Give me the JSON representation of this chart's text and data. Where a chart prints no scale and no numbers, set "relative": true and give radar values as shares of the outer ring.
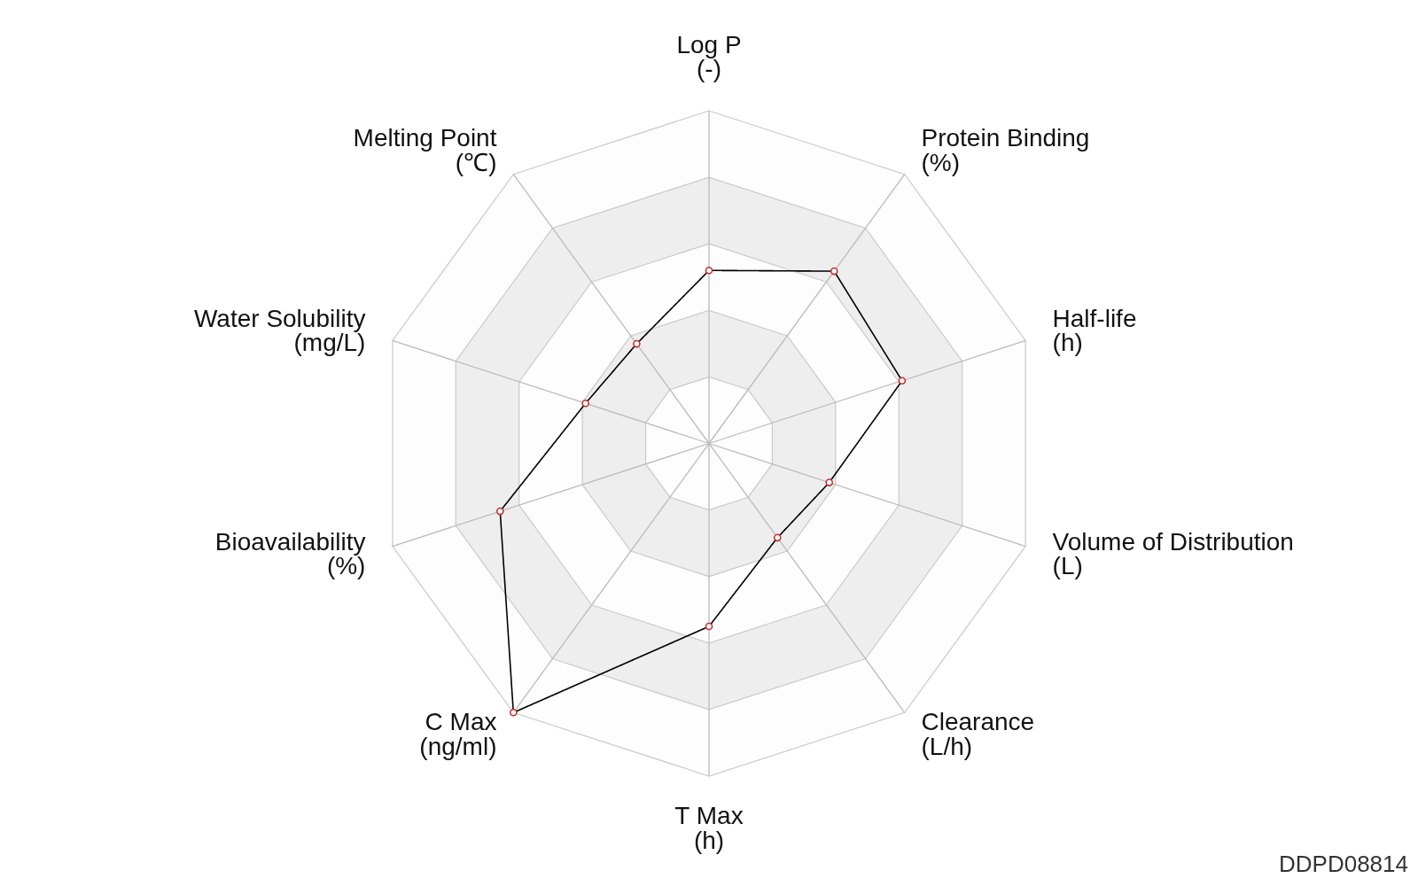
{
  "chart_data": {
    "type": "radar",
    "relative": true,
    "categories": [
      "Log P\n(-)",
      "Protein Binding\n(%)",
      "Half-life\n(h)",
      "Volume of Distribution\n(L)",
      "Clearance\n(L/h)",
      "T Max\n(h)",
      "C Max\n(ng/ml)",
      "Bioavailability\n(%)",
      "Water Solubility\n(mg/L)",
      "Melting Point\n(℃)"
    ],
    "series": [
      {
        "color": "#000000",
        "values": [
          0.52,
          0.64,
          0.61,
          0.38,
          0.35,
          0.55,
          1.0,
          0.66,
          0.39,
          0.37
        ]
      }
    ],
    "grid": true,
    "marker": "circle",
    "line_style": "solid",
    "annotations": [
      "DDPD08814"
    ]
  }
}
